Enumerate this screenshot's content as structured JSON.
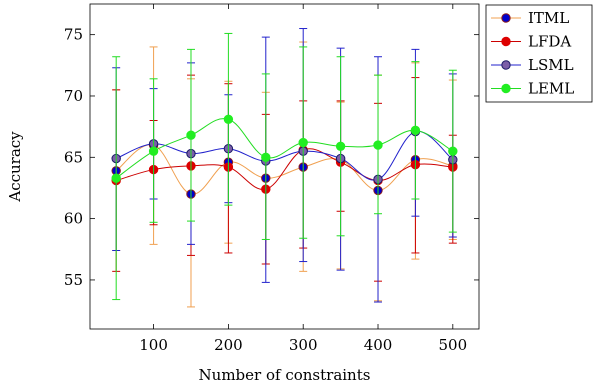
{
  "chart_data": {
    "type": "line",
    "title": "",
    "xlabel": "Number of constraints",
    "ylabel": "Accuracy",
    "x": [
      50,
      100,
      150,
      200,
      250,
      300,
      350,
      400,
      450,
      500
    ],
    "xlim": [
      15,
      535
    ],
    "ylim": [
      51,
      77.5
    ],
    "xticks": [
      100,
      200,
      300,
      400,
      500
    ],
    "yticks": [
      55,
      60,
      65,
      70,
      75
    ],
    "legend_position": "outside-top-right",
    "grid": false,
    "error_bars": true,
    "series": [
      {
        "name": "ITML",
        "line_color": "#f0a050",
        "marker_fill": "#0000cc",
        "marker_edge": "#8b1a1a",
        "values": [
          63.9,
          66.0,
          62.0,
          64.6,
          63.3,
          64.2,
          64.8,
          62.3,
          64.8,
          64.3
        ],
        "err_low": [
          57.4,
          57.9,
          52.8,
          58.0,
          56.3,
          55.7,
          55.9,
          53.3,
          56.7,
          58.3
        ],
        "err_high": [
          70.5,
          74.0,
          71.4,
          71.2,
          70.3,
          74.4,
          69.5,
          71.7,
          72.7,
          71.3
        ]
      },
      {
        "name": "LFDA",
        "line_color": "#cc0000",
        "marker_fill": "#dd0000",
        "marker_edge": "#dd0000",
        "values": [
          63.1,
          64.0,
          64.3,
          64.2,
          62.4,
          65.6,
          64.6,
          63.1,
          64.4,
          64.2
        ],
        "err_low": [
          55.7,
          59.5,
          57.0,
          57.2,
          56.3,
          57.6,
          60.6,
          54.9,
          57.2,
          58.0
        ],
        "err_high": [
          70.5,
          68.0,
          71.7,
          71.0,
          68.5,
          69.6,
          69.6,
          69.4,
          71.5,
          66.8
        ]
      },
      {
        "name": "LSML",
        "line_color": "#2222cc",
        "marker_fill": "#7b5ea8",
        "marker_edge": "#1a1a66",
        "values": [
          64.9,
          66.1,
          65.3,
          65.7,
          64.7,
          65.5,
          64.9,
          63.2,
          67.1,
          64.8
        ],
        "err_low": [
          57.4,
          61.6,
          57.9,
          61.3,
          54.8,
          56.5,
          55.8,
          53.2,
          60.2,
          58.5
        ],
        "err_high": [
          72.3,
          70.6,
          72.7,
          70.1,
          74.8,
          75.5,
          73.9,
          73.2,
          73.8,
          71.8
        ]
      },
      {
        "name": "LEML",
        "line_color": "#22dd22",
        "marker_fill": "#22ee22",
        "marker_edge": "#22ee22",
        "values": [
          63.3,
          65.5,
          66.8,
          68.1,
          65.0,
          66.2,
          65.9,
          66.0,
          67.2,
          65.5
        ],
        "err_low": [
          53.4,
          59.7,
          59.8,
          61.1,
          58.3,
          58.4,
          58.6,
          60.4,
          61.6,
          58.9
        ],
        "err_high": [
          73.2,
          71.4,
          73.8,
          75.1,
          71.8,
          74.0,
          73.2,
          71.7,
          72.8,
          72.1
        ]
      }
    ]
  }
}
